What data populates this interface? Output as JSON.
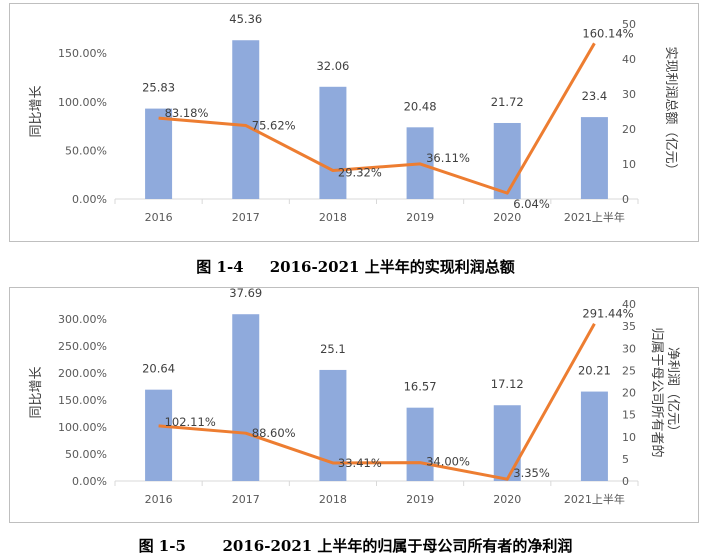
{
  "colors": {
    "bar": "#8faadc",
    "line": "#ed7d31",
    "text": "#404040",
    "axis": "#d9d9d9"
  },
  "captions": [
    {
      "number": "图 1-4",
      "title": "2016-2021 上半年的实现利润总额"
    },
    {
      "number": "图 1-5",
      "title": "2016-2021 上半年的归属于母公司所有者的净利润"
    }
  ],
  "chart_data": [
    {
      "type": "bar",
      "categories": [
        "2016",
        "2017",
        "2018",
        "2019",
        "2020",
        "2021上半年"
      ],
      "series": [
        {
          "name": "",
          "kind": "bar",
          "axis": "right",
          "values": [
            25.83,
            45.36,
            32.06,
            20.48,
            21.72,
            23.4
          ],
          "labels": [
            "25.83",
            "45.36",
            "32.06",
            "20.48",
            "21.72",
            "23.4"
          ]
        },
        {
          "name": "",
          "kind": "line",
          "axis": "left",
          "values": [
            83.18,
            75.62,
            29.32,
            36.11,
            6.04,
            160.14
          ],
          "labels": [
            "83.18%",
            "75.62%",
            "29.32%",
            "36.11%",
            "6.04%",
            "160.14%"
          ]
        }
      ],
      "y_left": {
        "label": "同比增长",
        "min": 0,
        "max": 180,
        "ticks": [
          0,
          50,
          100,
          150
        ],
        "tick_labels": [
          "0.00%",
          "50.00%",
          "100.00%",
          "150.00%"
        ]
      },
      "y_right": {
        "label": "实现利润总额（亿元）",
        "min": 0,
        "max": 50,
        "ticks": [
          0,
          10,
          20,
          30,
          40,
          50
        ],
        "tick_labels": [
          "0",
          "10",
          "20",
          "30",
          "40",
          "50"
        ]
      },
      "grid": false
    },
    {
      "type": "bar",
      "categories": [
        "2016",
        "2017",
        "2018",
        "2019",
        "2020",
        "2021上半年"
      ],
      "series": [
        {
          "name": "",
          "kind": "bar",
          "axis": "right",
          "values": [
            20.64,
            37.69,
            25.1,
            16.57,
            17.12,
            20.21
          ],
          "labels": [
            "20.64",
            "37.69",
            "25.1",
            "16.57",
            "17.12",
            "20.21"
          ]
        },
        {
          "name": "",
          "kind": "line",
          "axis": "left",
          "values": [
            102.11,
            88.6,
            33.41,
            34.0,
            3.35,
            291.44
          ],
          "labels": [
            "102.11%",
            "88.60%",
            "33.41%",
            "34.00%",
            "3.35%",
            "291.44%"
          ]
        }
      ],
      "y_left": {
        "label": "同比增长",
        "min": 0,
        "max": 328,
        "ticks": [
          0,
          50,
          100,
          150,
          200,
          250,
          300
        ],
        "tick_labels": [
          "0.00%",
          "50.00%",
          "100.00%",
          "150.00%",
          "200.00%",
          "250.00%",
          "300.00%"
        ]
      },
      "y_right": {
        "label_lines": [
          "归属于母公司所有者的",
          "净利润（亿元）"
        ],
        "min": 0,
        "max": 40,
        "ticks": [
          0,
          5,
          10,
          15,
          20,
          25,
          30,
          35,
          40
        ],
        "tick_labels": [
          "0",
          "5",
          "10",
          "15",
          "20",
          "25",
          "30",
          "35",
          "40"
        ]
      },
      "grid": false
    }
  ]
}
